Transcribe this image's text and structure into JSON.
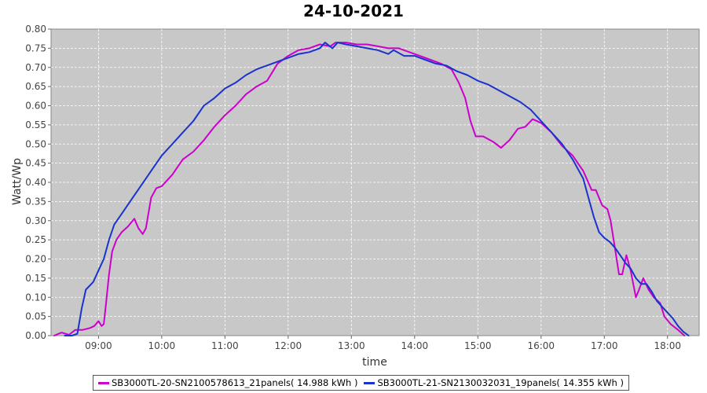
{
  "chart_data": {
    "type": "line",
    "title": "24-10-2021",
    "xlabel": "time",
    "ylabel": "Watt/Wp",
    "xlim": [
      "08:15",
      "18:30"
    ],
    "ylim": [
      0,
      0.8
    ],
    "x_ticks": [
      "09:00",
      "10:00",
      "11:00",
      "12:00",
      "13:00",
      "14:00",
      "15:00",
      "16:00",
      "17:00",
      "18:00"
    ],
    "y_ticks": [
      "0.00",
      "0.05",
      "0.10",
      "0.15",
      "0.20",
      "0.25",
      "0.30",
      "0.35",
      "0.40",
      "0.45",
      "0.50",
      "0.55",
      "0.60",
      "0.65",
      "0.70",
      "0.75",
      "0.80"
    ],
    "grid": true,
    "plot_background": "#c8c8c8",
    "legend_position": "bottom",
    "series": [
      {
        "name": "SB3000TL-20-SN2100578613_21panels( 14.988 kWh )",
        "color": "#cc00cc",
        "points": [
          [
            "08:18",
            0.0
          ],
          [
            "08:25",
            0.008
          ],
          [
            "08:32",
            0.002
          ],
          [
            "08:38",
            0.015
          ],
          [
            "08:45",
            0.015
          ],
          [
            "08:52",
            0.02
          ],
          [
            "08:56",
            0.025
          ],
          [
            "09:00",
            0.038
          ],
          [
            "09:03",
            0.025
          ],
          [
            "09:05",
            0.03
          ],
          [
            "09:07",
            0.08
          ],
          [
            "09:10",
            0.16
          ],
          [
            "09:13",
            0.22
          ],
          [
            "09:17",
            0.25
          ],
          [
            "09:22",
            0.27
          ],
          [
            "09:28",
            0.285
          ],
          [
            "09:34",
            0.305
          ],
          [
            "09:38",
            0.28
          ],
          [
            "09:42",
            0.265
          ],
          [
            "09:45",
            0.28
          ],
          [
            "09:50",
            0.36
          ],
          [
            "09:55",
            0.385
          ],
          [
            "10:00",
            0.39
          ],
          [
            "10:10",
            0.42
          ],
          [
            "10:20",
            0.46
          ],
          [
            "10:30",
            0.48
          ],
          [
            "10:40",
            0.51
          ],
          [
            "10:50",
            0.545
          ],
          [
            "11:00",
            0.575
          ],
          [
            "11:10",
            0.6
          ],
          [
            "11:20",
            0.63
          ],
          [
            "11:30",
            0.65
          ],
          [
            "11:40",
            0.665
          ],
          [
            "11:50",
            0.71
          ],
          [
            "12:00",
            0.73
          ],
          [
            "12:10",
            0.745
          ],
          [
            "12:20",
            0.75
          ],
          [
            "12:30",
            0.76
          ],
          [
            "12:40",
            0.755
          ],
          [
            "12:45",
            0.765
          ],
          [
            "12:55",
            0.765
          ],
          [
            "13:05",
            0.76
          ],
          [
            "13:15",
            0.76
          ],
          [
            "13:25",
            0.755
          ],
          [
            "13:35",
            0.75
          ],
          [
            "13:45",
            0.75
          ],
          [
            "13:55",
            0.74
          ],
          [
            "14:05",
            0.73
          ],
          [
            "14:15",
            0.72
          ],
          [
            "14:25",
            0.71
          ],
          [
            "14:35",
            0.695
          ],
          [
            "14:42",
            0.66
          ],
          [
            "14:48",
            0.62
          ],
          [
            "14:53",
            0.56
          ],
          [
            "14:58",
            0.52
          ],
          [
            "15:05",
            0.52
          ],
          [
            "15:15",
            0.505
          ],
          [
            "15:22",
            0.49
          ],
          [
            "15:30",
            0.51
          ],
          [
            "15:38",
            0.54
          ],
          [
            "15:45",
            0.545
          ],
          [
            "15:52",
            0.565
          ],
          [
            "16:00",
            0.555
          ],
          [
            "16:10",
            0.53
          ],
          [
            "16:20",
            0.495
          ],
          [
            "16:30",
            0.47
          ],
          [
            "16:40",
            0.43
          ],
          [
            "16:48",
            0.38
          ],
          [
            "16:52",
            0.38
          ],
          [
            "16:58",
            0.34
          ],
          [
            "17:03",
            0.33
          ],
          [
            "17:06",
            0.3
          ],
          [
            "17:10",
            0.23
          ],
          [
            "17:14",
            0.16
          ],
          [
            "17:17",
            0.16
          ],
          [
            "17:21",
            0.21
          ],
          [
            "17:25",
            0.17
          ],
          [
            "17:30",
            0.1
          ],
          [
            "17:33",
            0.12
          ],
          [
            "17:37",
            0.15
          ],
          [
            "17:42",
            0.12
          ],
          [
            "17:47",
            0.1
          ],
          [
            "17:53",
            0.085
          ],
          [
            "17:57",
            0.05
          ],
          [
            "18:03",
            0.03
          ],
          [
            "18:10",
            0.015
          ],
          [
            "18:16",
            0.0
          ]
        ]
      },
      {
        "name": "SB3000TL-21-SN2130032031_19panels( 14.355 kWh )",
        "color": "#1a33cc",
        "points": [
          [
            "08:28",
            0.0
          ],
          [
            "08:35",
            0.0
          ],
          [
            "08:40",
            0.005
          ],
          [
            "08:44",
            0.07
          ],
          [
            "08:48",
            0.12
          ],
          [
            "08:55",
            0.14
          ],
          [
            "09:00",
            0.17
          ],
          [
            "09:05",
            0.2
          ],
          [
            "09:10",
            0.25
          ],
          [
            "09:15",
            0.29
          ],
          [
            "09:20",
            0.31
          ],
          [
            "09:30",
            0.35
          ],
          [
            "09:40",
            0.39
          ],
          [
            "09:50",
            0.43
          ],
          [
            "10:00",
            0.47
          ],
          [
            "10:10",
            0.5
          ],
          [
            "10:20",
            0.53
          ],
          [
            "10:30",
            0.56
          ],
          [
            "10:40",
            0.6
          ],
          [
            "10:50",
            0.62
          ],
          [
            "11:00",
            0.645
          ],
          [
            "11:10",
            0.66
          ],
          [
            "11:20",
            0.68
          ],
          [
            "11:30",
            0.695
          ],
          [
            "11:40",
            0.705
          ],
          [
            "11:50",
            0.715
          ],
          [
            "12:00",
            0.725
          ],
          [
            "12:10",
            0.735
          ],
          [
            "12:20",
            0.74
          ],
          [
            "12:30",
            0.75
          ],
          [
            "12:35",
            0.765
          ],
          [
            "12:42",
            0.75
          ],
          [
            "12:47",
            0.765
          ],
          [
            "12:55",
            0.76
          ],
          [
            "13:05",
            0.755
          ],
          [
            "13:15",
            0.75
          ],
          [
            "13:25",
            0.745
          ],
          [
            "13:35",
            0.735
          ],
          [
            "13:40",
            0.745
          ],
          [
            "13:50",
            0.73
          ],
          [
            "14:00",
            0.73
          ],
          [
            "14:10",
            0.72
          ],
          [
            "14:20",
            0.71
          ],
          [
            "14:30",
            0.705
          ],
          [
            "14:40",
            0.69
          ],
          [
            "14:50",
            0.68
          ],
          [
            "15:00",
            0.665
          ],
          [
            "15:10",
            0.655
          ],
          [
            "15:20",
            0.64
          ],
          [
            "15:30",
            0.625
          ],
          [
            "15:40",
            0.61
          ],
          [
            "15:50",
            0.59
          ],
          [
            "16:00",
            0.56
          ],
          [
            "16:10",
            0.53
          ],
          [
            "16:20",
            0.5
          ],
          [
            "16:30",
            0.46
          ],
          [
            "16:40",
            0.41
          ],
          [
            "16:45",
            0.36
          ],
          [
            "16:50",
            0.31
          ],
          [
            "16:55",
            0.27
          ],
          [
            "17:00",
            0.255
          ],
          [
            "17:05",
            0.245
          ],
          [
            "17:10",
            0.23
          ],
          [
            "17:15",
            0.21
          ],
          [
            "17:20",
            0.19
          ],
          [
            "17:25",
            0.175
          ],
          [
            "17:30",
            0.15
          ],
          [
            "17:35",
            0.135
          ],
          [
            "17:40",
            0.135
          ],
          [
            "17:45",
            0.115
          ],
          [
            "17:50",
            0.09
          ],
          [
            "17:55",
            0.075
          ],
          [
            "18:00",
            0.06
          ],
          [
            "18:05",
            0.045
          ],
          [
            "18:10",
            0.025
          ],
          [
            "18:15",
            0.01
          ],
          [
            "18:20",
            0.0
          ]
        ]
      }
    ]
  }
}
